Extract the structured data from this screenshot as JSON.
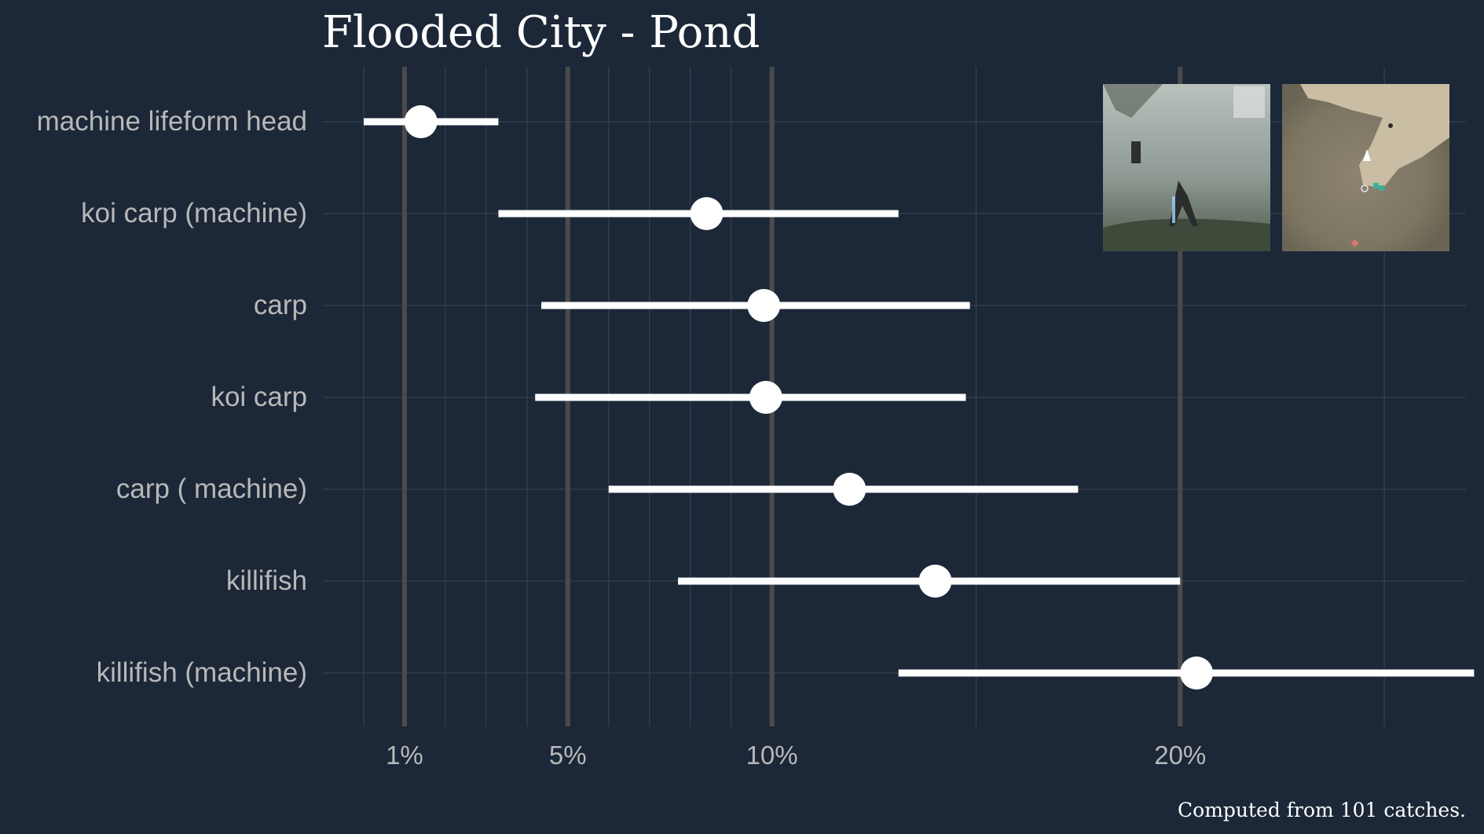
{
  "chart_data": {
    "type": "dot-interval",
    "title": "Flooded City - Pond",
    "caption": "Computed from 101 catches.",
    "x_ticks": [
      {
        "value": 1,
        "label": "1%"
      },
      {
        "value": 5,
        "label": "5%"
      },
      {
        "value": 10,
        "label": "10%"
      },
      {
        "value": 20,
        "label": "20%"
      }
    ],
    "x_minor_ticks": [
      0,
      2,
      3,
      4,
      6,
      7,
      8,
      9,
      15,
      25
    ],
    "xlim": [
      -1.0,
      27.0
    ],
    "categories": [
      "machine lifeform head",
      "koi carp (machine)",
      "carp",
      "koi carp",
      "carp ( machine)",
      "killifish",
      "killifish (machine)"
    ],
    "series": [
      {
        "estimate": [
          1.4,
          8.4,
          9.8,
          9.85,
          11.9,
          14.0,
          20.4
        ],
        "lower": [
          0.0,
          3.3,
          4.35,
          4.2,
          6.0,
          7.7,
          13.1
        ],
        "upper": [
          3.3,
          13.1,
          14.85,
          14.75,
          17.5,
          20.0,
          27.2
        ]
      }
    ],
    "grid": true,
    "inset_images": [
      "scene-screenshot",
      "map-screenshot"
    ],
    "colors": {
      "background": "#1c2838",
      "grid_major": "#4b4b4b",
      "grid_minor": "#3a4554",
      "point": "#ffffff",
      "text": "#b8b8b8"
    }
  }
}
